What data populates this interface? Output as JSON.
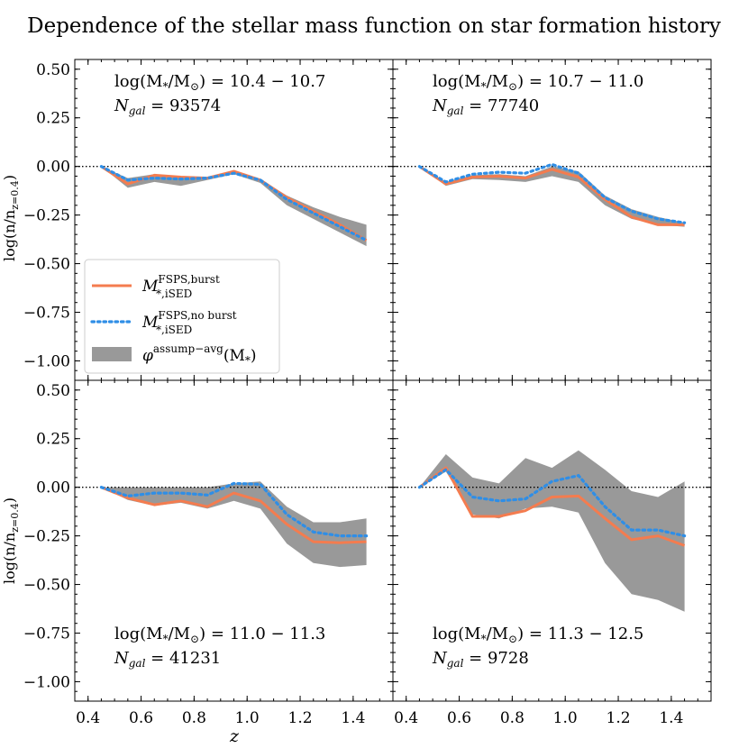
{
  "chart_data": {
    "type": "line",
    "title": "Dependence of the stellar mass function on star formation history",
    "xlabel": "z",
    "ylabel": "log(n/n_{z=0.4})",
    "ylabel_main": "log(n/n",
    "ylabel_sub": "z=0.4",
    "ylabel_close": ")",
    "xlim": [
      0.35,
      1.55
    ],
    "ylim": [
      -1.1,
      0.55
    ],
    "xticks": [
      0.4,
      0.6,
      0.8,
      1.0,
      1.2,
      1.4
    ],
    "xtick_labels": [
      "0.4",
      "0.6",
      "0.8",
      "1.0",
      "1.2",
      "1.4"
    ],
    "yticks": [
      0.5,
      0.25,
      0.0,
      -0.25,
      -0.5,
      -0.75,
      -1.0
    ],
    "ytick_labels": [
      "0.50",
      "0.25",
      "0.00",
      "−0.25",
      "−0.50",
      "−0.75",
      "−1.00"
    ],
    "reference_line": 0.0,
    "colors": {
      "burst": "#f47c4f",
      "noburst": "#2f8ee6",
      "band": "#999999"
    },
    "legend": {
      "location": "lower-left of top-left panel",
      "burst_label": "M*,iSED FSPS,burst",
      "burst_main": "M",
      "burst_sup": "FSPS,burst",
      "burst_sub": "*,iSED",
      "noburst_label": "M*,iSED FSPS,no burst",
      "noburst_main": "M",
      "noburst_sup": "FSPS,no burst",
      "noburst_sub": "*,iSED",
      "band_label": "φ assump−avg (M*)",
      "band_main": "φ",
      "band_sup": "assump−avg",
      "band_tail": "(M",
      "band_sub": "*",
      "band_close": ")"
    },
    "x": [
      0.45,
      0.55,
      0.65,
      0.75,
      0.85,
      0.95,
      1.05,
      1.15,
      1.25,
      1.35,
      1.45
    ],
    "panels": [
      {
        "mass_range": "log(M*/M⊙) = 10.4 − 10.7",
        "ngal": "N_gal = 93574",
        "mass_label": "log(M",
        "mass_sub1": "*",
        "mass_mid": "/M",
        "mass_sub2": "⊙",
        "mass_tail": ") = 10.4 − 10.7",
        "ngal_label": "N",
        "ngal_sub": "gal",
        "ngal_tail": " = 93574",
        "annotation_position": "top",
        "burst": [
          0.0,
          -0.09,
          -0.045,
          -0.055,
          -0.06,
          -0.025,
          -0.07,
          -0.16,
          -0.23,
          -0.3,
          -0.38
        ],
        "noburst": [
          0.0,
          -0.07,
          -0.06,
          -0.065,
          -0.06,
          -0.035,
          -0.07,
          -0.17,
          -0.24,
          -0.31,
          -0.38
        ],
        "band_low": [
          0.0,
          -0.11,
          -0.08,
          -0.1,
          -0.07,
          -0.04,
          -0.085,
          -0.2,
          -0.27,
          -0.34,
          -0.41
        ],
        "band_high": [
          0.0,
          -0.06,
          -0.04,
          -0.05,
          -0.06,
          -0.02,
          -0.065,
          -0.15,
          -0.21,
          -0.26,
          -0.3
        ]
      },
      {
        "mass_range": "log(M*/M⊙) = 10.7 − 11.0",
        "ngal": "N_gal = 77740",
        "mass_label": "log(M",
        "mass_sub1": "*",
        "mass_mid": "/M",
        "mass_sub2": "⊙",
        "mass_tail": ") = 10.7 − 11.0",
        "ngal_label": "N",
        "ngal_sub": "gal",
        "ngal_tail": " = 77740",
        "annotation_position": "top",
        "burst": [
          0.0,
          -0.09,
          -0.055,
          -0.05,
          -0.06,
          -0.015,
          -0.055,
          -0.17,
          -0.26,
          -0.3,
          -0.3
        ],
        "noburst": [
          0.0,
          -0.08,
          -0.04,
          -0.03,
          -0.035,
          0.01,
          -0.035,
          -0.16,
          -0.23,
          -0.27,
          -0.29
        ],
        "band_low": [
          0.0,
          -0.1,
          -0.065,
          -0.07,
          -0.08,
          -0.05,
          -0.08,
          -0.2,
          -0.27,
          -0.3,
          -0.31
        ],
        "band_high": [
          0.0,
          -0.08,
          -0.045,
          -0.04,
          -0.05,
          0.0,
          -0.025,
          -0.15,
          -0.22,
          -0.26,
          -0.29
        ]
      },
      {
        "mass_range": "log(M*/M⊙) = 11.0 − 11.3",
        "ngal": "N_gal = 41231",
        "mass_label": "log(M",
        "mass_sub1": "*",
        "mass_mid": "/M",
        "mass_sub2": "⊙",
        "mass_tail": ") = 11.0 − 11.3",
        "ngal_label": "N",
        "ngal_sub": "gal",
        "ngal_tail": " = 41231",
        "annotation_position": "bottom",
        "burst": [
          0.0,
          -0.055,
          -0.09,
          -0.07,
          -0.1,
          -0.03,
          -0.07,
          -0.19,
          -0.28,
          -0.285,
          -0.28
        ],
        "noburst": [
          0.0,
          -0.045,
          -0.03,
          -0.03,
          -0.04,
          0.02,
          0.015,
          -0.14,
          -0.23,
          -0.25,
          -0.25
        ],
        "band_low": [
          0.0,
          -0.065,
          -0.095,
          -0.08,
          -0.11,
          -0.07,
          -0.11,
          -0.29,
          -0.39,
          -0.41,
          -0.4
        ],
        "band_high": [
          0.0,
          0.0,
          0.0,
          0.0,
          0.0,
          0.02,
          0.03,
          -0.1,
          -0.18,
          -0.18,
          -0.16
        ]
      },
      {
        "mass_range": "log(M*/M⊙) = 11.3 − 12.5",
        "ngal": "N_gal = 9728",
        "mass_label": "log(M",
        "mass_sub1": "*",
        "mass_mid": "/M",
        "mass_sub2": "⊙",
        "mass_tail": ") = 11.3 − 12.5",
        "ngal_label": "N",
        "ngal_sub": "gal",
        "ngal_tail": " = 9728",
        "annotation_position": "bottom",
        "burst": [
          0.0,
          0.1,
          -0.15,
          -0.15,
          -0.12,
          -0.05,
          -0.045,
          -0.16,
          -0.27,
          -0.25,
          -0.3
        ],
        "noburst": [
          0.0,
          0.09,
          -0.05,
          -0.07,
          -0.06,
          0.03,
          0.06,
          -0.1,
          -0.22,
          -0.22,
          -0.25
        ],
        "band_low": [
          0.0,
          0.08,
          -0.14,
          -0.16,
          -0.11,
          -0.1,
          -0.13,
          -0.39,
          -0.55,
          -0.58,
          -0.64
        ],
        "band_high": [
          0.0,
          0.17,
          0.05,
          0.02,
          0.15,
          0.1,
          0.19,
          0.09,
          -0.02,
          -0.05,
          0.03
        ]
      }
    ]
  }
}
